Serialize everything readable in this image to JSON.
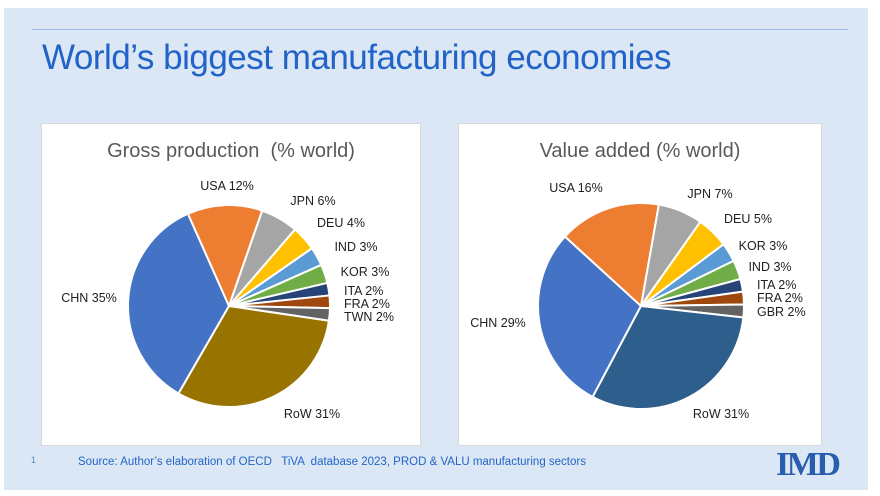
{
  "slide": {
    "title": "World’s biggest manufacturing economies"
  },
  "footer": {
    "page_number": "1",
    "source": "Source: Author’s elaboration of OECD   TiVA  database 2023, PROD & VALU manufacturing sectors",
    "logo_text": "IMD"
  },
  "colors": {
    "slide_background": "#DBE7F4",
    "title_blue": "#2163C8",
    "divider_blue": "#9CBAE4",
    "chart_title_gray": "#595959",
    "label_black": "#212121",
    "logo_blue": "#2A5DAD",
    "panel_white": "#FFFFFF",
    "panel_border": "#D9D9D9"
  },
  "chart_data": [
    {
      "type": "pie",
      "title": "Gross production  (% world)",
      "units": "% of world",
      "start_angle_deg": 210,
      "slice_border_color": "#FFFFFF",
      "legend": "none (outside-end data labels)",
      "slices": [
        {
          "name": "CHN",
          "value": 35,
          "color": "#4472C4"
        },
        {
          "name": "USA",
          "value": 12,
          "color": "#ED7D31"
        },
        {
          "name": "JPN",
          "value": 6,
          "color": "#A5A5A5"
        },
        {
          "name": "DEU",
          "value": 4,
          "color": "#FFC000"
        },
        {
          "name": "IND",
          "value": 3,
          "color": "#5B9BD5"
        },
        {
          "name": "KOR",
          "value": 3,
          "color": "#70AD47"
        },
        {
          "name": "ITA",
          "value": 2,
          "color": "#264478"
        },
        {
          "name": "FRA",
          "value": 2,
          "color": "#9E480E"
        },
        {
          "name": "TWN",
          "value": 2,
          "color": "#636363"
        },
        {
          "name": "RoW",
          "value": 31,
          "color": "#997300"
        }
      ]
    },
    {
      "type": "pie",
      "title": "Value added (% world)",
      "units": "% of world",
      "start_angle_deg": 208,
      "slice_border_color": "#FFFFFF",
      "legend": "none (outside-end data labels)",
      "slices": [
        {
          "name": "CHN",
          "value": 29,
          "color": "#4472C4"
        },
        {
          "name": "USA",
          "value": 16,
          "color": "#ED7D31"
        },
        {
          "name": "JPN",
          "value": 7,
          "color": "#A5A5A5"
        },
        {
          "name": "DEU",
          "value": 5,
          "color": "#FFC000"
        },
        {
          "name": "KOR",
          "value": 3,
          "color": "#5B9BD5"
        },
        {
          "name": "IND",
          "value": 3,
          "color": "#70AD47"
        },
        {
          "name": "ITA",
          "value": 2,
          "color": "#264478"
        },
        {
          "name": "FRA",
          "value": 2,
          "color": "#9E480E"
        },
        {
          "name": "GBR",
          "value": 2,
          "color": "#636363"
        },
        {
          "name": "RoW",
          "value": 31,
          "color": "#2E5E8C"
        }
      ]
    }
  ]
}
